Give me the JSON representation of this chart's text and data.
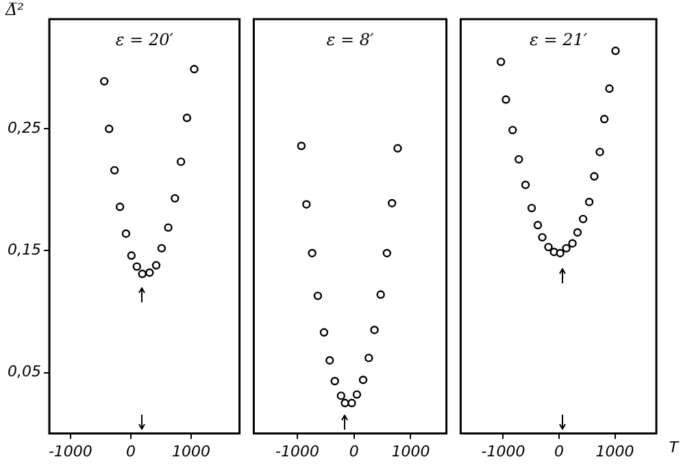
{
  "chart_data": [
    {
      "type": "scatter",
      "title": "ε = 20′",
      "ylabel": "Δ̅²",
      "marker": "circle",
      "color": "#000000",
      "x": [
        -440,
        -360,
        -270,
        -180,
        -80,
        10,
        100,
        190,
        310,
        420,
        510,
        620,
        730,
        830,
        930,
        1050
      ],
      "values": [
        0.289,
        0.25,
        0.216,
        0.186,
        0.164,
        0.146,
        0.137,
        0.131,
        0.132,
        0.138,
        0.152,
        0.169,
        0.193,
        0.223,
        0.259,
        0.299
      ],
      "xlim": [
        -1350,
        1800
      ],
      "xticks": [
        -1000,
        0,
        1000
      ],
      "ylim": [
        0,
        0.34
      ],
      "yticks": [
        {
          "value": 0.05,
          "label": "0,05"
        },
        {
          "value": 0.15,
          "label": "0,15"
        },
        {
          "value": 0.25,
          "label": "0,25"
        }
      ],
      "tick_labels": true
    },
    {
      "type": "scatter",
      "title": "ε = 8′",
      "marker": "circle",
      "color": "#000000",
      "tick_labels": "x",
      "x": [
        -930,
        -840,
        -740,
        -640,
        -530,
        -430,
        -340,
        -230,
        -160,
        -40,
        50,
        160,
        260,
        360,
        470,
        580,
        670,
        770
      ],
      "values": [
        0.236,
        0.188,
        0.148,
        0.113,
        0.083,
        0.06,
        0.043,
        0.031,
        0.025,
        0.025,
        0.032,
        0.044,
        0.062,
        0.085,
        0.114,
        0.148,
        0.189,
        0.234
      ],
      "xlim": [
        -1770,
        1630
      ],
      "xticks": [
        -1000,
        0,
        1000
      ],
      "ylim": [
        0,
        0.34
      ]
    },
    {
      "type": "scatter",
      "title": "ε = 21′",
      "xlabel": "T",
      "marker": "circle",
      "color": "#000000",
      "tick_labels": "x",
      "x": [
        -1040,
        -950,
        -830,
        -720,
        -600,
        -490,
        -380,
        -300,
        -190,
        -90,
        20,
        130,
        240,
        330,
        430,
        540,
        630,
        730,
        810,
        900,
        1010
      ],
      "values": [
        0.305,
        0.274,
        0.249,
        0.225,
        0.204,
        0.185,
        0.171,
        0.161,
        0.153,
        0.149,
        0.148,
        0.152,
        0.156,
        0.165,
        0.176,
        0.19,
        0.211,
        0.231,
        0.258,
        0.283,
        0.314
      ],
      "xlim": [
        -1760,
        1740
      ],
      "xticks": [
        -1000,
        0,
        1000
      ],
      "ylim": [
        0,
        0.34
      ]
    }
  ]
}
